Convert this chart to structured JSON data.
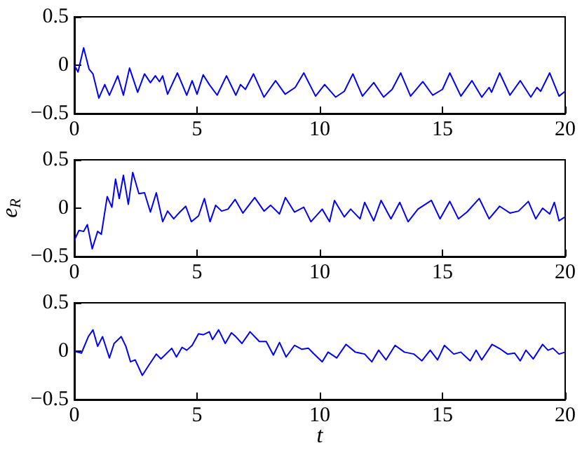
{
  "chart_data": [
    {
      "type": "line",
      "color": "#0000ff",
      "xlim": [
        0,
        20
      ],
      "ylim": [
        -0.5,
        0.5
      ],
      "xticks": [
        0,
        5,
        10,
        15,
        20
      ],
      "yticks": [
        -0.5,
        0,
        0.5
      ],
      "x": [
        0,
        0.15,
        0.38,
        0.6,
        0.76,
        1.0,
        1.24,
        1.43,
        1.77,
        2.0,
        2.25,
        2.58,
        2.86,
        3.1,
        3.3,
        3.47,
        3.6,
        3.8,
        4.2,
        4.58,
        4.8,
        5.0,
        5.25,
        5.5,
        5.82,
        6.2,
        6.58,
        6.77,
        6.97,
        7.3,
        7.73,
        8.2,
        8.59,
        9.0,
        9.35,
        9.83,
        10.2,
        10.65,
        11.0,
        11.35,
        11.74,
        12.2,
        12.6,
        12.95,
        13.3,
        13.7,
        14.2,
        14.6,
        15.0,
        15.3,
        15.75,
        16.2,
        16.6,
        16.9,
        17.0,
        17.33,
        17.75,
        18.17,
        18.6,
        18.85,
        19.0,
        19.37,
        19.75,
        20
      ],
      "values": [
        0,
        -0.07,
        0.18,
        -0.04,
        -0.09,
        -0.34,
        -0.2,
        -0.31,
        -0.11,
        -0.31,
        -0.03,
        -0.28,
        -0.09,
        -0.18,
        -0.11,
        -0.17,
        -0.11,
        -0.3,
        -0.08,
        -0.31,
        -0.16,
        -0.3,
        -0.1,
        -0.2,
        -0.31,
        -0.11,
        -0.31,
        -0.2,
        -0.25,
        -0.09,
        -0.33,
        -0.16,
        -0.3,
        -0.23,
        -0.08,
        -0.32,
        -0.2,
        -0.33,
        -0.27,
        -0.09,
        -0.32,
        -0.18,
        -0.33,
        -0.25,
        -0.08,
        -0.32,
        -0.17,
        -0.31,
        -0.25,
        -0.08,
        -0.32,
        -0.16,
        -0.33,
        -0.23,
        -0.28,
        -0.08,
        -0.31,
        -0.16,
        -0.33,
        -0.23,
        -0.27,
        -0.08,
        -0.32,
        -0.27
      ]
    },
    {
      "type": "line",
      "color": "#0000ff",
      "ylabel": "e$_{R}$",
      "xlim": [
        0,
        20
      ],
      "ylim": [
        -0.5,
        0.5
      ],
      "xticks": [
        0,
        5,
        10,
        15,
        20
      ],
      "yticks": [
        -0.5,
        0,
        0.5
      ],
      "x": [
        0,
        0.19,
        0.38,
        0.53,
        0.73,
        0.95,
        1.1,
        1.34,
        1.53,
        1.68,
        1.83,
        2.0,
        2.2,
        2.38,
        2.63,
        2.86,
        3.1,
        3.34,
        3.6,
        3.8,
        4.05,
        4.3,
        4.54,
        4.77,
        5.06,
        5.3,
        5.53,
        5.76,
        6.0,
        6.26,
        6.55,
        6.87,
        7.35,
        7.73,
        8.0,
        8.36,
        8.6,
        8.97,
        9.35,
        9.64,
        10.1,
        10.4,
        10.6,
        11.0,
        11.26,
        11.64,
        11.83,
        12.2,
        12.5,
        12.9,
        13.26,
        13.6,
        14.0,
        14.55,
        14.9,
        15.3,
        15.65,
        16.0,
        16.5,
        16.9,
        17.33,
        17.75,
        18.1,
        18.5,
        18.8,
        19.08,
        19.37,
        19.56,
        19.75,
        20
      ],
      "values": [
        -0.33,
        -0.23,
        -0.24,
        -0.17,
        -0.42,
        -0.24,
        -0.27,
        0.12,
        0.01,
        0.3,
        0.1,
        0.34,
        0.04,
        0.37,
        0.15,
        0.16,
        -0.04,
        0.16,
        -0.14,
        -0.03,
        -0.11,
        -0.04,
        0.02,
        -0.14,
        -0.08,
        0.1,
        -0.14,
        0.03,
        -0.03,
        -0.01,
        0.09,
        -0.05,
        0.11,
        -0.03,
        0.03,
        -0.06,
        0.11,
        -0.04,
        0.01,
        -0.14,
        -0.01,
        -0.14,
        0.08,
        -0.09,
        -0.01,
        -0.11,
        0.06,
        -0.13,
        0.08,
        -0.11,
        0.06,
        -0.14,
        -0.01,
        0.08,
        -0.11,
        0.07,
        -0.11,
        -0.04,
        0.1,
        -0.11,
        0.02,
        -0.05,
        -0.03,
        0.07,
        -0.11,
        0,
        -0.06,
        0.06,
        -0.13,
        -0.09
      ]
    },
    {
      "type": "line",
      "color": "#0000ff",
      "xlabel": "t",
      "xlim": [
        0,
        20
      ],
      "ylim": [
        -0.5,
        0.5
      ],
      "xticks": [
        0,
        5,
        10,
        15,
        20
      ],
      "yticks": [
        -0.5,
        0,
        0.5
      ],
      "x": [
        0,
        0.29,
        0.57,
        0.76,
        0.95,
        1.15,
        1.43,
        1.62,
        1.91,
        2.1,
        2.29,
        2.48,
        2.77,
        3.05,
        3.34,
        3.53,
        3.97,
        4.16,
        4.39,
        4.58,
        4.8,
        5.06,
        5.25,
        5.5,
        5.63,
        5.88,
        6.15,
        6.4,
        6.58,
        6.83,
        7.16,
        7.54,
        7.82,
        8.11,
        8.36,
        8.63,
        8.97,
        9.26,
        9.54,
        9.73,
        10.1,
        10.34,
        10.69,
        11.07,
        11.45,
        11.83,
        12.12,
        12.4,
        12.7,
        13.07,
        13.45,
        13.84,
        14.16,
        14.5,
        14.8,
        15.08,
        15.46,
        15.75,
        16.13,
        16.37,
        16.6,
        17.02,
        17.37,
        17.65,
        17.94,
        18.17,
        18.4,
        18.7,
        19.08,
        19.3,
        19.5,
        19.75,
        20
      ],
      "values": [
        0,
        -0.02,
        0.15,
        0.22,
        0.05,
        0.15,
        -0.07,
        0.08,
        0.15,
        0.05,
        -0.11,
        -0.09,
        -0.25,
        -0.14,
        -0.03,
        -0.08,
        0.03,
        -0.06,
        0.04,
        0.01,
        0.06,
        0.18,
        0.17,
        0.2,
        0.12,
        0.22,
        0.08,
        0.19,
        0.15,
        0.08,
        0.2,
        0.1,
        0.1,
        -0.04,
        0.09,
        -0.06,
        0.06,
        0.02,
        0.03,
        -0.02,
        -0.11,
        -0.01,
        -0.07,
        0.07,
        -0.01,
        -0.03,
        -0.11,
        0.01,
        -0.09,
        0.06,
        -0.01,
        -0.03,
        -0.1,
        0.01,
        -0.09,
        0.06,
        -0.03,
        -0.01,
        -0.1,
        0.01,
        -0.09,
        0.07,
        0.02,
        -0.03,
        -0.02,
        -0.1,
        0.01,
        -0.08,
        0.07,
        0.01,
        0.03,
        -0.03,
        -0.01
      ]
    }
  ]
}
